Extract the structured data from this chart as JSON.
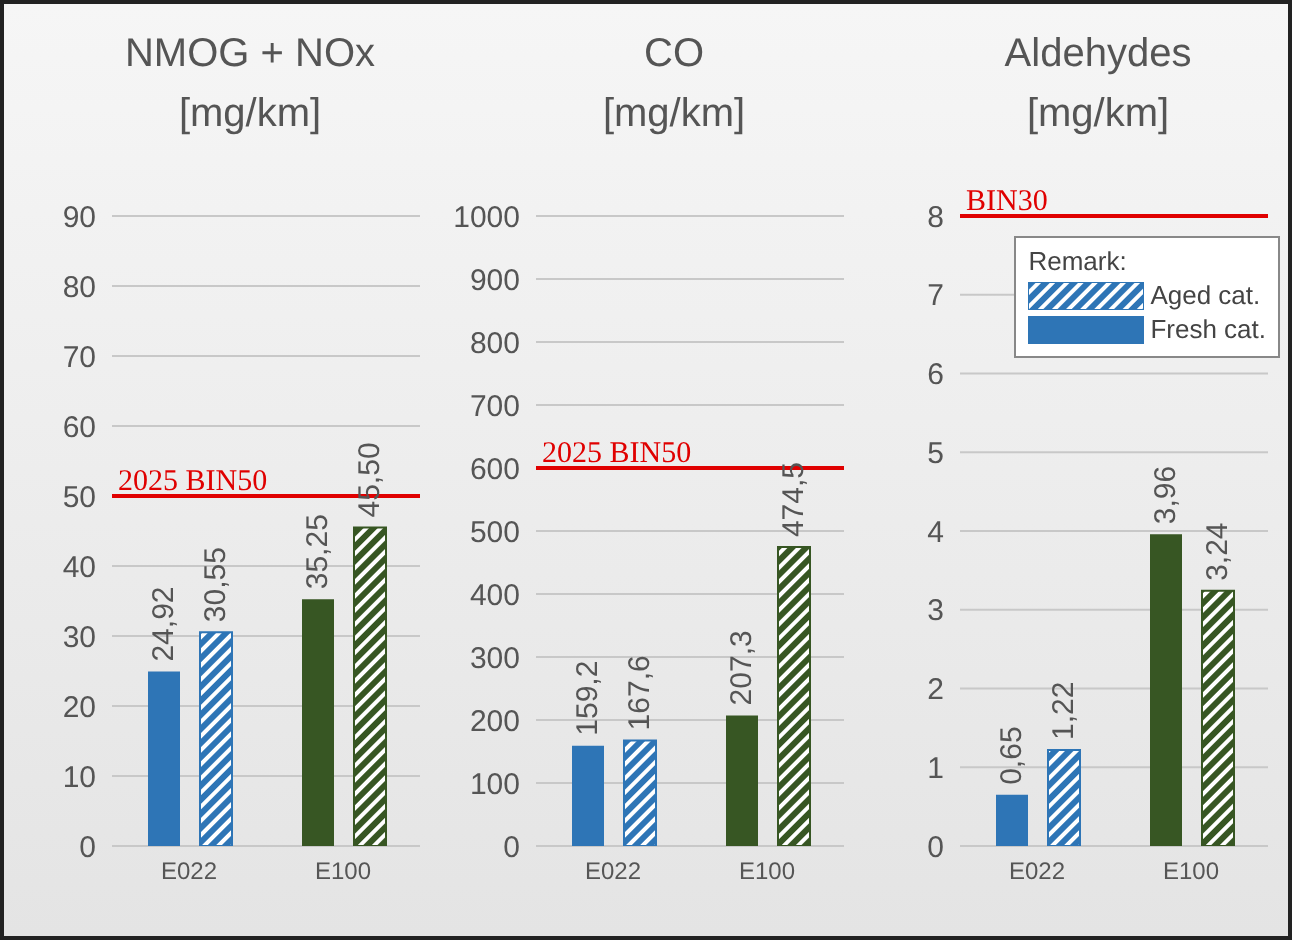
{
  "chart_data": [
    {
      "type": "bar",
      "title": "NMOG + NOx",
      "subtitle": "[mg/km]",
      "categories": [
        "E022",
        "E100"
      ],
      "series": [
        {
          "colors": [
            "#2e75b6",
            "#375623"
          ],
          "values": [
            24.92,
            35.25
          ],
          "value_labels": [
            "24,92",
            "35,25"
          ]
        },
        {
          "colors": [
            "#2e75b6",
            "#375623"
          ],
          "values": [
            30.55,
            45.5
          ],
          "value_labels": [
            "30,55",
            "45,50"
          ]
        }
      ],
      "ylim": [
        0,
        90
      ],
      "yticks": [
        0,
        10,
        20,
        30,
        40,
        50,
        60,
        70,
        80,
        90
      ],
      "grid": "y",
      "legend": false,
      "ref_lines": [
        {
          "axis": "y",
          "value": 50,
          "label": "2025 BIN50",
          "color": "#e00000"
        }
      ]
    },
    {
      "type": "bar",
      "title": "CO",
      "subtitle": "[mg/km]",
      "categories": [
        "E022",
        "E100"
      ],
      "series": [
        {
          "colors": [
            "#2e75b6",
            "#375623"
          ],
          "values": [
            159.2,
            207.3
          ],
          "value_labels": [
            "159,2",
            "207,3"
          ]
        },
        {
          "colors": [
            "#2e75b6",
            "#375623"
          ],
          "values": [
            167.6,
            474.5
          ],
          "value_labels": [
            "167,6",
            "474,5"
          ]
        }
      ],
      "ylim": [
        0,
        1000
      ],
      "yticks": [
        0,
        100,
        200,
        300,
        400,
        500,
        600,
        700,
        800,
        900,
        1000
      ],
      "grid": "y",
      "legend": false,
      "ref_lines": [
        {
          "axis": "y",
          "value": 600,
          "label": "2025 BIN50",
          "color": "#e00000"
        }
      ]
    },
    {
      "type": "bar",
      "title": "Aldehydes",
      "subtitle": "[mg/km]",
      "legend_title": "Remark:",
      "categories": [
        "E022",
        "E100"
      ],
      "series": [
        {
          "name": "Fresh cat.",
          "colors": [
            "#2e75b6",
            "#375623"
          ],
          "values": [
            0.65,
            3.96
          ],
          "value_labels": [
            "0,65",
            "3,96"
          ]
        },
        {
          "name": "Aged cat.",
          "colors": [
            "#2e75b6",
            "#375623"
          ],
          "values": [
            1.22,
            3.24
          ],
          "value_labels": [
            "1,22",
            "3,24"
          ]
        }
      ],
      "ylim": [
        0,
        8
      ],
      "yticks": [
        0,
        1,
        2,
        3,
        4,
        5,
        6,
        7,
        8
      ],
      "grid": "y",
      "legend": "top right",
      "ref_lines": [
        {
          "axis": "y",
          "value": 8,
          "label": "BIN30",
          "color": "#e00000"
        }
      ]
    }
  ]
}
